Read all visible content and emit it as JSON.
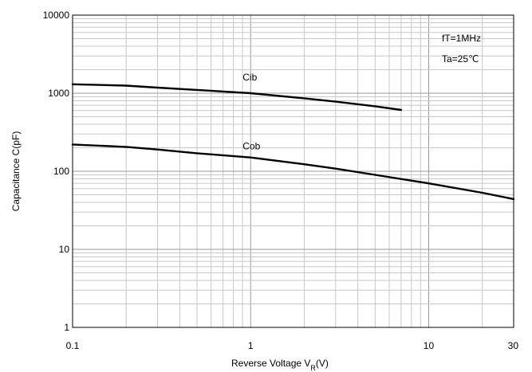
{
  "chart_data": {
    "type": "line",
    "xscale": "log",
    "yscale": "log",
    "xlim": [
      0.1,
      30
    ],
    "ylim": [
      1,
      10000
    ],
    "grid": true,
    "xlabel": {
      "text": "Reverse Voltage  V",
      "sub": "R",
      "suffix": "(V)"
    },
    "ylabel": "Capacitance  C(pF)",
    "x_ticks": [
      0.1,
      1,
      10,
      30
    ],
    "x_tick_labels": [
      "0.1",
      "1",
      "10",
      "30"
    ],
    "y_ticks": [
      1,
      10,
      100,
      1000,
      10000
    ],
    "y_tick_labels": [
      "1",
      "10",
      "100",
      "1000",
      "10000"
    ],
    "annotations": [
      "fT=1MHz",
      "Ta=25℃"
    ],
    "series": [
      {
        "name": "Cib",
        "x": [
          0.1,
          0.2,
          0.3,
          0.5,
          1,
          2,
          3,
          5,
          7
        ],
        "y": [
          1300,
          1250,
          1180,
          1100,
          1000,
          860,
          780,
          680,
          610
        ]
      },
      {
        "name": "Cob",
        "x": [
          0.1,
          0.2,
          0.3,
          0.5,
          1,
          2,
          3,
          5,
          10,
          20,
          30
        ],
        "y": [
          220,
          205,
          190,
          170,
          150,
          123,
          108,
          90,
          70,
          53,
          44
        ]
      }
    ]
  }
}
